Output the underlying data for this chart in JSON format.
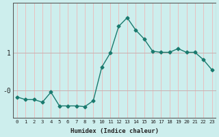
{
  "x": [
    0,
    1,
    2,
    3,
    4,
    5,
    6,
    7,
    8,
    9,
    10,
    11,
    12,
    13,
    14,
    15,
    16,
    17,
    18,
    19,
    20,
    21,
    22,
    23
  ],
  "y": [
    -0.18,
    -0.25,
    -0.25,
    -0.32,
    -0.05,
    -0.42,
    -0.42,
    -0.42,
    -0.44,
    -0.28,
    0.62,
    1.0,
    1.72,
    1.95,
    1.62,
    1.38,
    1.05,
    1.02,
    1.02,
    1.12,
    1.02,
    1.02,
    0.82,
    0.55
  ],
  "xlabel": "Humidex (Indice chaleur)",
  "ytick_vals": [
    1.0,
    0.0
  ],
  "ytick_labels": [
    "1",
    "-0"
  ],
  "xtick_labels": [
    "0",
    "1",
    "2",
    "3",
    "4",
    "5",
    "6",
    "7",
    "8",
    "9",
    "10",
    "11",
    "12",
    "13",
    "14",
    "15",
    "16",
    "17",
    "18",
    "19",
    "20",
    "21",
    "22",
    "23"
  ],
  "line_color": "#1a7a6e",
  "marker": "D",
  "marker_size": 2.5,
  "bg_color": "#cdeeed",
  "vgrid_color": "#e8c0c0",
  "hgrid_color": "#c8b0b0",
  "fig_bg": "#cdeeed",
  "ylim": [
    -0.75,
    2.35
  ],
  "xlim": [
    -0.5,
    23.5
  ],
  "xlabel_fontsize": 6.5,
  "ytick_fontsize": 7.0,
  "xtick_fontsize": 5.2
}
